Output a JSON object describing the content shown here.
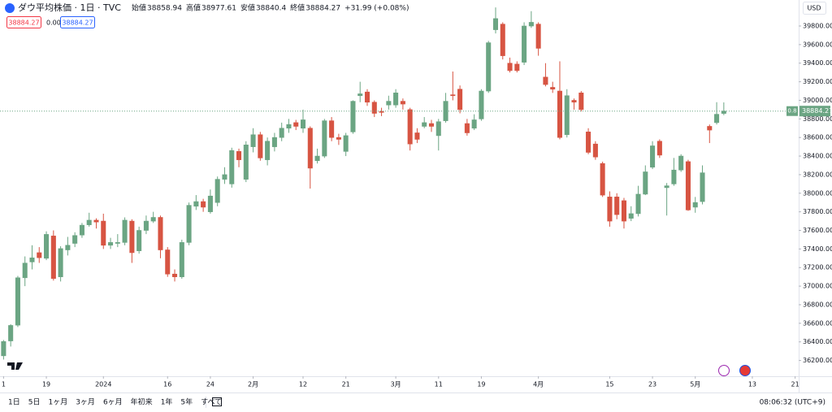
{
  "chart_data": {
    "type": "candlestick",
    "title": "ダウ平均株価 · 1日 · TVC",
    "up_color": "#6ba583",
    "down_color": "#d75442",
    "open": [
      36250,
      36410,
      36580,
      37090,
      37260,
      37360,
      37300,
      37540,
      37100,
      37390,
      37460,
      37550,
      37660,
      37710,
      37700,
      37440,
      37460,
      37470,
      37700,
      37380,
      37600,
      37700,
      37740,
      37390,
      37130,
      37100,
      37470,
      37860,
      37910,
      37800,
      37900,
      38150,
      38100,
      38450,
      38150,
      38500,
      38630,
      38360,
      38500,
      38600,
      38700,
      38760,
      38700,
      38700,
      38350,
      38400,
      38780,
      38600,
      38450,
      38660,
      39050,
      39090,
      38980,
      38880,
      38950,
      38950,
      38990,
      38900,
      38650,
      38720,
      38750,
      38620,
      38780,
      39060,
      39120,
      38750,
      38700,
      38800,
      39100,
      39760,
      39820,
      39400,
      39390,
      39410,
      39800,
      39820,
      39250,
      39140,
      39100,
      38630,
      39000,
      39080,
      38660,
      38530,
      38320,
      37960,
      37960,
      37920,
      37730,
      37780,
      37990,
      38280,
      38560,
      38060,
      38100,
      38250,
      38340,
      37850,
      37910,
      38720,
      38760,
      38858.94
    ],
    "high": [
      36420,
      36590,
      37110,
      37320,
      37440,
      37420,
      37590,
      37600,
      37430,
      37530,
      37580,
      37680,
      37790,
      37730,
      37780,
      37520,
      37560,
      37740,
      37720,
      37640,
      37760,
      37800,
      37760,
      37420,
      37180,
      37500,
      37900,
      37980,
      37940,
      38040,
      38180,
      38280,
      38490,
      38480,
      38560,
      38700,
      38660,
      38600,
      38650,
      38760,
      38800,
      38790,
      38900,
      38720,
      38480,
      38800,
      38820,
      38640,
      38650,
      39000,
      39200,
      39120,
      39000,
      38920,
      39050,
      39120,
      39020,
      38920,
      38700,
      38820,
      38790,
      38800,
      39080,
      39310,
      39160,
      38800,
      38850,
      39120,
      39640,
      40000,
      39840,
      39460,
      39420,
      39840,
      39960,
      39840,
      39400,
      39200,
      39420,
      39120,
      39020,
      39100,
      38700,
      38560,
      38340,
      38020,
      38000,
      37950,
      37860,
      38080,
      38300,
      38560,
      38580,
      38110,
      38380,
      38420,
      38360,
      37960,
      38300,
      38740,
      38980,
      38977.61
    ],
    "low": [
      36210,
      36350,
      36560,
      37000,
      37180,
      37250,
      37280,
      37060,
      37050,
      37330,
      37420,
      37520,
      37640,
      37620,
      37400,
      37400,
      37420,
      37440,
      37250,
      37350,
      37560,
      37680,
      37300,
      37100,
      37050,
      37080,
      37440,
      37820,
      37800,
      37780,
      37860,
      38100,
      38060,
      38280,
      38120,
      38440,
      38350,
      38300,
      38450,
      38560,
      38650,
      38680,
      38650,
      38050,
      38320,
      38380,
      38560,
      38520,
      38400,
      38640,
      38980,
      38940,
      38820,
      38830,
      38900,
      38920,
      38900,
      38460,
      38540,
      38700,
      38660,
      38460,
      38760,
      39000,
      38860,
      38620,
      38680,
      38780,
      39080,
      39720,
      39440,
      39300,
      39300,
      39380,
      39780,
      39480,
      39150,
      39080,
      38580,
      38600,
      38900,
      38880,
      38420,
      38360,
      37960,
      37640,
      37720,
      37620,
      37700,
      37750,
      37980,
      38260,
      38380,
      37760,
      38080,
      38230,
      37810,
      37790,
      37880,
      38540,
      38740,
      38840.4
    ],
    "close": [
      36404,
      36577,
      37090,
      37248,
      37305,
      37306,
      37557,
      37082,
      37404,
      37440,
      37545,
      37656,
      37710,
      37690,
      37440,
      37470,
      37470,
      37710,
      37360,
      37600,
      37700,
      37740,
      37390,
      37130,
      37100,
      37470,
      37870,
      37910,
      37850,
      37970,
      38150,
      38200,
      38460,
      38360,
      38520,
      38630,
      38380,
      38560,
      38600,
      38700,
      38740,
      38720,
      38790,
      38270,
      38400,
      38780,
      38600,
      38580,
      38620,
      38990,
      39070,
      38980,
      38860,
      38870,
      38990,
      39080,
      38960,
      38530,
      38580,
      38760,
      38720,
      38770,
      38990,
      39050,
      38900,
      38650,
      38790,
      39100,
      39620,
      39880,
      39480,
      39320,
      39320,
      39800,
      39840,
      39560,
      39170,
      39120,
      38600,
      39050,
      38980,
      38900,
      38440,
      38390,
      37980,
      37700,
      37770,
      37700,
      37780,
      37990,
      38230,
      38510,
      38410,
      38080,
      38250,
      38400,
      37820,
      37900,
      38220,
      38680,
      38850,
      38884.27
    ],
    "xlim": [
      -0.5,
      111.5
    ],
    "xticks": [
      {
        "value": 0,
        "label": "1"
      },
      {
        "value": 6,
        "label": "19"
      },
      {
        "value": 14,
        "label": "2024"
      },
      {
        "value": 23,
        "label": "16"
      },
      {
        "value": 29,
        "label": "24"
      },
      {
        "value": 35,
        "label": "2月"
      },
      {
        "value": 42,
        "label": "12"
      },
      {
        "value": 48,
        "label": "21"
      },
      {
        "value": 55,
        "label": "3月"
      },
      {
        "value": 61,
        "label": "11"
      },
      {
        "value": 67,
        "label": "19"
      },
      {
        "value": 75,
        "label": "4月"
      },
      {
        "value": 85,
        "label": "15"
      },
      {
        "value": 91,
        "label": "23"
      },
      {
        "value": 97,
        "label": "5月"
      },
      {
        "value": 105,
        "label": "13"
      },
      {
        "value": 111,
        "label": "21"
      }
    ],
    "ylim": [
      36030,
      40080
    ],
    "yticks": [
      {
        "value": 36200,
        "label": "36200.00"
      },
      {
        "value": 36400,
        "label": "36400.00"
      },
      {
        "value": 36600,
        "label": "36600.00"
      },
      {
        "value": 36800,
        "label": "36800.00"
      },
      {
        "value": 37000,
        "label": "37000.00"
      },
      {
        "value": 37200,
        "label": "37200.00"
      },
      {
        "value": 37400,
        "label": "37400.00"
      },
      {
        "value": 37600,
        "label": "37600.00"
      },
      {
        "value": 37800,
        "label": "37800.00"
      },
      {
        "value": 38000,
        "label": "38000.00"
      },
      {
        "value": 38200,
        "label": "38200.00"
      },
      {
        "value": 38400,
        "label": "38400.00"
      },
      {
        "value": 38600,
        "label": "38600.00"
      },
      {
        "value": 38800,
        "label": "38800.00"
      },
      {
        "value": 39000,
        "label": "39000.00"
      },
      {
        "value": 39200,
        "label": "39200.00"
      },
      {
        "value": 39400,
        "label": "39400.00"
      },
      {
        "value": 39600,
        "label": "39600.00"
      },
      {
        "value": 39800,
        "label": "39800.00"
      }
    ],
    "grid": false
  },
  "ui": {
    "ohlc_labels": {
      "open": "始値",
      "high": "高値",
      "low": "安値",
      "close": "終値"
    },
    "change": "+31.99 (+0.08%)",
    "spread": "0.00",
    "currency": "USD",
    "price_tag": "0.8",
    "ranges": [
      "1日",
      "5日",
      "1ヶ月",
      "3ヶ月",
      "6ヶ月",
      "年初来",
      "1年",
      "5年",
      "すべて"
    ],
    "clock": "08:06:32 (UTC+9)"
  }
}
